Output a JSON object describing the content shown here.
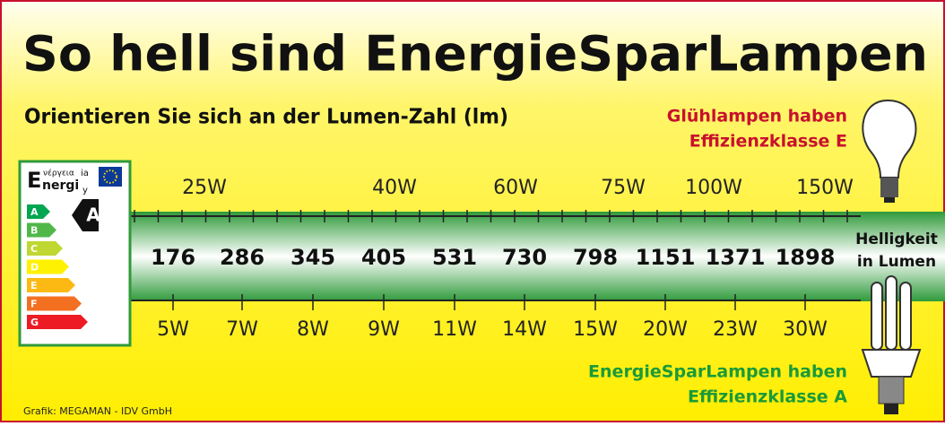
{
  "title": "So hell sind EnergieSparLampen",
  "subtitle": "Orientieren Sie sich an der Lumen-Zahl (lm)",
  "incandescent_note": [
    "Glühlampen haben",
    "Effizienzklasse E"
  ],
  "cfl_note": [
    "EnergieSparLampen haben",
    "Effizienzklasse A"
  ],
  "brightness_label": [
    "Helligkeit",
    "in Lumen"
  ],
  "incandescent_watts": [
    "25W",
    "40W",
    "60W",
    "75W",
    "100W",
    "150W"
  ],
  "lumens": [
    176,
    286,
    345,
    405,
    531,
    730,
    798,
    1151,
    1371,
    1898
  ],
  "cfl_watts": [
    "5W",
    "7W",
    "8W",
    "9W",
    "11W",
    "14W",
    "15W",
    "20W",
    "23W",
    "30W"
  ],
  "energy_label": {
    "letter": "E",
    "top": "νέργεια",
    "top_suffix": "ia",
    "bottom": "nergi",
    "bottom_suffix": "y",
    "classes": [
      "A",
      "B",
      "C",
      "D",
      "E",
      "F",
      "G"
    ],
    "rating": "A"
  },
  "credit": "Grafik: MEGAMAN - IDV GmbH"
}
